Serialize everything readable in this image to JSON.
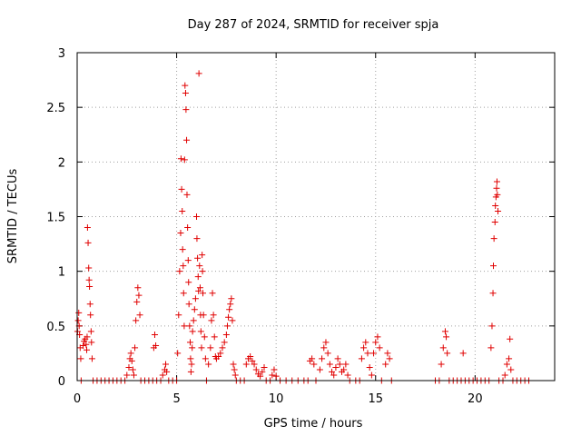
{
  "chart_data": {
    "type": "scatter",
    "title": "Day 287 of 2024, SRMTID for receiver spja",
    "xlabel": "GPS time / hours",
    "ylabel": "SRMTID / TECUs",
    "xlim": [
      0,
      24
    ],
    "ylim": [
      0,
      3
    ],
    "xticks": [
      0,
      5,
      10,
      15,
      20
    ],
    "xtick_labels": [
      "0",
      "5",
      "10",
      "15",
      "20"
    ],
    "yticks": [
      0,
      0.5,
      1,
      1.5,
      2,
      2.5,
      3
    ],
    "ytick_labels": [
      "0",
      "0.5",
      "1",
      "1.5",
      "2",
      "2.5",
      "3"
    ],
    "grid": true,
    "marker": "plus",
    "color": "#e00000",
    "series": [
      {
        "name": "SRMTID",
        "points": [
          [
            0.02,
            0.45
          ],
          [
            0.05,
            0.55
          ],
          [
            0.08,
            0.62
          ],
          [
            0.1,
            0.5
          ],
          [
            0.12,
            0.42
          ],
          [
            0.15,
            0.3
          ],
          [
            0.18,
            0.2
          ],
          [
            0.2,
            0.0
          ],
          [
            0.3,
            0.32
          ],
          [
            0.35,
            0.36
          ],
          [
            0.4,
            0.38
          ],
          [
            0.45,
            0.33
          ],
          [
            0.48,
            0.28
          ],
          [
            0.5,
            0.4
          ],
          [
            0.52,
            1.4
          ],
          [
            0.55,
            1.26
          ],
          [
            0.58,
            1.03
          ],
          [
            0.6,
            0.92
          ],
          [
            0.62,
            0.86
          ],
          [
            0.65,
            0.7
          ],
          [
            0.67,
            0.6
          ],
          [
            0.7,
            0.45
          ],
          [
            0.72,
            0.35
          ],
          [
            0.75,
            0.2
          ],
          [
            0.8,
            0.0
          ],
          [
            1.0,
            0.0
          ],
          [
            1.2,
            0.0
          ],
          [
            1.4,
            0.0
          ],
          [
            1.6,
            0.0
          ],
          [
            1.8,
            0.0
          ],
          [
            2.0,
            0.0
          ],
          [
            2.2,
            0.0
          ],
          [
            2.4,
            0.0
          ],
          [
            2.5,
            0.05
          ],
          [
            2.6,
            0.12
          ],
          [
            2.65,
            0.2
          ],
          [
            2.7,
            0.25
          ],
          [
            2.75,
            0.18
          ],
          [
            2.8,
            0.1
          ],
          [
            2.85,
            0.05
          ],
          [
            2.9,
            0.3
          ],
          [
            2.95,
            0.55
          ],
          [
            3.0,
            0.72
          ],
          [
            3.05,
            0.85
          ],
          [
            3.1,
            0.78
          ],
          [
            3.15,
            0.6
          ],
          [
            3.2,
            0.0
          ],
          [
            3.4,
            0.0
          ],
          [
            3.6,
            0.0
          ],
          [
            3.8,
            0.0
          ],
          [
            3.85,
            0.3
          ],
          [
            3.9,
            0.42
          ],
          [
            3.95,
            0.32
          ],
          [
            4.0,
            0.0
          ],
          [
            4.2,
            0.0
          ],
          [
            4.3,
            0.05
          ],
          [
            4.4,
            0.1
          ],
          [
            4.45,
            0.15
          ],
          [
            4.5,
            0.08
          ],
          [
            4.6,
            0.0
          ],
          [
            4.8,
            0.0
          ],
          [
            5.0,
            0.0
          ],
          [
            5.05,
            0.25
          ],
          [
            5.1,
            0.6
          ],
          [
            5.15,
            1.0
          ],
          [
            5.2,
            1.35
          ],
          [
            5.22,
            2.03
          ],
          [
            5.25,
            1.75
          ],
          [
            5.28,
            1.55
          ],
          [
            5.3,
            1.2
          ],
          [
            5.33,
            1.05
          ],
          [
            5.35,
            0.8
          ],
          [
            5.38,
            0.5
          ],
          [
            5.4,
            2.02
          ],
          [
            5.42,
            2.7
          ],
          [
            5.45,
            2.63
          ],
          [
            5.47,
            2.48
          ],
          [
            5.5,
            2.2
          ],
          [
            5.52,
            1.7
          ],
          [
            5.55,
            1.4
          ],
          [
            5.58,
            1.1
          ],
          [
            5.6,
            0.9
          ],
          [
            5.62,
            0.7
          ],
          [
            5.65,
            0.5
          ],
          [
            5.68,
            0.35
          ],
          [
            5.7,
            0.2
          ],
          [
            5.72,
            0.08
          ],
          [
            5.75,
            0.15
          ],
          [
            5.78,
            0.3
          ],
          [
            5.8,
            0.45
          ],
          [
            5.85,
            0.55
          ],
          [
            5.9,
            0.65
          ],
          [
            5.95,
            0.75
          ],
          [
            6.0,
            1.5
          ],
          [
            6.02,
            1.3
          ],
          [
            6.05,
            1.12
          ],
          [
            6.08,
            0.95
          ],
          [
            6.1,
            0.82
          ],
          [
            6.12,
            2.81
          ],
          [
            6.15,
            1.05
          ],
          [
            6.18,
            0.85
          ],
          [
            6.2,
            0.6
          ],
          [
            6.22,
            0.45
          ],
          [
            6.25,
            0.3
          ],
          [
            6.28,
            1.15
          ],
          [
            6.3,
            1.0
          ],
          [
            6.32,
            0.8
          ],
          [
            6.35,
            0.6
          ],
          [
            6.4,
            0.4
          ],
          [
            6.45,
            0.2
          ],
          [
            6.5,
            0.0
          ],
          [
            6.6,
            0.15
          ],
          [
            6.7,
            0.3
          ],
          [
            6.75,
            0.55
          ],
          [
            6.8,
            0.8
          ],
          [
            6.85,
            0.6
          ],
          [
            6.9,
            0.4
          ],
          [
            6.95,
            0.22
          ],
          [
            7.0,
            0.2
          ],
          [
            7.1,
            0.22
          ],
          [
            7.2,
            0.25
          ],
          [
            7.3,
            0.3
          ],
          [
            7.4,
            0.35
          ],
          [
            7.5,
            0.42
          ],
          [
            7.55,
            0.5
          ],
          [
            7.6,
            0.58
          ],
          [
            7.65,
            0.65
          ],
          [
            7.7,
            0.7
          ],
          [
            7.75,
            0.75
          ],
          [
            7.8,
            0.55
          ],
          [
            7.85,
            0.15
          ],
          [
            7.9,
            0.1
          ],
          [
            7.95,
            0.05
          ],
          [
            8.0,
            0.0
          ],
          [
            8.2,
            0.0
          ],
          [
            8.4,
            0.0
          ],
          [
            8.5,
            0.15
          ],
          [
            8.6,
            0.2
          ],
          [
            8.7,
            0.22
          ],
          [
            8.8,
            0.18
          ],
          [
            8.9,
            0.15
          ],
          [
            9.0,
            0.1
          ],
          [
            9.1,
            0.06
          ],
          [
            9.2,
            0.04
          ],
          [
            9.3,
            0.08
          ],
          [
            9.4,
            0.12
          ],
          [
            9.5,
            0.0
          ],
          [
            9.7,
            0.0
          ],
          [
            9.8,
            0.05
          ],
          [
            9.9,
            0.1
          ],
          [
            10.0,
            0.04
          ],
          [
            10.2,
            0.0
          ],
          [
            10.5,
            0.0
          ],
          [
            10.8,
            0.0
          ],
          [
            11.1,
            0.0
          ],
          [
            11.4,
            0.0
          ],
          [
            11.6,
            0.0
          ],
          [
            11.7,
            0.18
          ],
          [
            11.8,
            0.2
          ],
          [
            11.9,
            0.15
          ],
          [
            12.0,
            0.0
          ],
          [
            12.2,
            0.1
          ],
          [
            12.3,
            0.2
          ],
          [
            12.4,
            0.3
          ],
          [
            12.5,
            0.35
          ],
          [
            12.6,
            0.25
          ],
          [
            12.7,
            0.15
          ],
          [
            12.8,
            0.08
          ],
          [
            12.9,
            0.05
          ],
          [
            13.0,
            0.12
          ],
          [
            13.1,
            0.2
          ],
          [
            13.2,
            0.15
          ],
          [
            13.3,
            0.08
          ],
          [
            13.4,
            0.1
          ],
          [
            13.5,
            0.15
          ],
          [
            13.6,
            0.05
          ],
          [
            13.7,
            0.0
          ],
          [
            14.0,
            0.0
          ],
          [
            14.2,
            0.0
          ],
          [
            14.3,
            0.2
          ],
          [
            14.4,
            0.3
          ],
          [
            14.5,
            0.35
          ],
          [
            14.6,
            0.25
          ],
          [
            14.7,
            0.12
          ],
          [
            14.8,
            0.05
          ],
          [
            14.9,
            0.25
          ],
          [
            15.0,
            0.35
          ],
          [
            15.1,
            0.4
          ],
          [
            15.2,
            0.3
          ],
          [
            15.3,
            0.0
          ],
          [
            15.5,
            0.15
          ],
          [
            15.6,
            0.25
          ],
          [
            15.7,
            0.2
          ],
          [
            15.8,
            0.0
          ],
          [
            18.0,
            0.0
          ],
          [
            18.2,
            0.0
          ],
          [
            18.3,
            0.15
          ],
          [
            18.4,
            0.3
          ],
          [
            18.5,
            0.45
          ],
          [
            18.55,
            0.4
          ],
          [
            18.6,
            0.25
          ],
          [
            18.7,
            0.0
          ],
          [
            18.9,
            0.0
          ],
          [
            19.1,
            0.0
          ],
          [
            19.3,
            0.0
          ],
          [
            19.4,
            0.25
          ],
          [
            19.5,
            0.0
          ],
          [
            19.7,
            0.0
          ],
          [
            19.9,
            0.0
          ],
          [
            20.1,
            0.0
          ],
          [
            20.3,
            0.0
          ],
          [
            20.5,
            0.0
          ],
          [
            20.7,
            0.0
          ],
          [
            20.8,
            0.3
          ],
          [
            20.85,
            0.5
          ],
          [
            20.9,
            0.8
          ],
          [
            20.92,
            1.05
          ],
          [
            20.95,
            1.3
          ],
          [
            21.0,
            1.45
          ],
          [
            21.02,
            1.6
          ],
          [
            21.05,
            1.68
          ],
          [
            21.08,
            1.76
          ],
          [
            21.1,
            1.82
          ],
          [
            21.12,
            1.7
          ],
          [
            21.15,
            1.55
          ],
          [
            21.2,
            0.0
          ],
          [
            21.4,
            0.0
          ],
          [
            21.5,
            0.05
          ],
          [
            21.6,
            0.15
          ],
          [
            21.7,
            0.2
          ],
          [
            21.75,
            0.38
          ],
          [
            21.8,
            0.1
          ],
          [
            21.9,
            0.0
          ],
          [
            22.1,
            0.0
          ],
          [
            22.3,
            0.0
          ],
          [
            22.5,
            0.0
          ],
          [
            22.7,
            0.0
          ]
        ]
      }
    ]
  }
}
